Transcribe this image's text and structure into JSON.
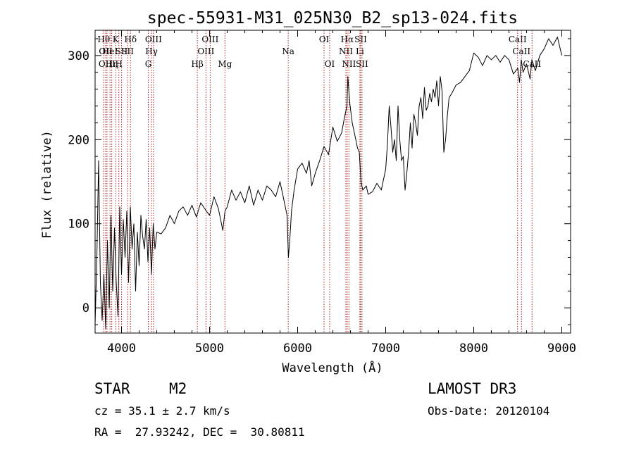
{
  "chart_data": {
    "type": "line",
    "title": "spec-55931-M31_025N30_B2_sp13-024.fits",
    "xlabel": "Wavelength (Å)",
    "ylabel": "Flux (relative)",
    "xlim": [
      3700,
      9100
    ],
    "ylim": [
      -30,
      330
    ],
    "xticks": [
      4000,
      5000,
      6000,
      7000,
      8000,
      9000
    ],
    "yticks": [
      0,
      100,
      200,
      300
    ],
    "grid": false,
    "series": [
      {
        "name": "flux",
        "x": [
          3700,
          3720,
          3740,
          3760,
          3780,
          3800,
          3820,
          3840,
          3860,
          3880,
          3900,
          3920,
          3940,
          3960,
          3980,
          4000,
          4020,
          4040,
          4060,
          4080,
          4100,
          4120,
          4140,
          4160,
          4180,
          4200,
          4220,
          4240,
          4260,
          4280,
          4300,
          4320,
          4340,
          4360,
          4380,
          4400,
          4450,
          4500,
          4550,
          4600,
          4650,
          4700,
          4750,
          4800,
          4850,
          4900,
          4950,
          5000,
          5050,
          5100,
          5150,
          5175,
          5200,
          5250,
          5300,
          5350,
          5400,
          5450,
          5500,
          5550,
          5600,
          5650,
          5700,
          5750,
          5800,
          5850,
          5880,
          5895,
          5910,
          5930,
          5960,
          6000,
          6050,
          6100,
          6130,
          6160,
          6200,
          6250,
          6300,
          6350,
          6400,
          6450,
          6500,
          6530,
          6560,
          6570,
          6590,
          6620,
          6650,
          6680,
          6700,
          6720,
          6740,
          6780,
          6800,
          6850,
          6900,
          6950,
          7000,
          7020,
          7040,
          7060,
          7080,
          7100,
          7120,
          7140,
          7160,
          7180,
          7200,
          7220,
          7240,
          7260,
          7280,
          7300,
          7320,
          7340,
          7360,
          7380,
          7400,
          7420,
          7440,
          7460,
          7480,
          7500,
          7520,
          7540,
          7560,
          7580,
          7600,
          7620,
          7640,
          7660,
          7680,
          7700,
          7720,
          7750,
          7800,
          7850,
          7900,
          7950,
          8000,
          8050,
          8100,
          8150,
          8200,
          8250,
          8300,
          8350,
          8400,
          8450,
          8500,
          8520,
          8540,
          8560,
          8600,
          8640,
          8660,
          8700,
          8750,
          8800,
          8850,
          8900,
          8950,
          9000
        ],
        "values": [
          -20,
          60,
          175,
          30,
          -15,
          40,
          -25,
          80,
          0,
          110,
          20,
          95,
          30,
          -10,
          120,
          40,
          105,
          60,
          115,
          30,
          120,
          70,
          100,
          20,
          90,
          50,
          110,
          85,
          70,
          105,
          55,
          95,
          40,
          100,
          70,
          90,
          88,
          95,
          110,
          100,
          115,
          120,
          110,
          122,
          108,
          125,
          117,
          110,
          132,
          118,
          92,
          115,
          120,
          140,
          128,
          138,
          125,
          145,
          122,
          140,
          128,
          145,
          140,
          132,
          150,
          125,
          110,
          60,
          80,
          115,
          140,
          165,
          172,
          160,
          175,
          145,
          160,
          175,
          192,
          182,
          215,
          198,
          208,
          225,
          240,
          275,
          245,
          220,
          205,
          190,
          185,
          150,
          140,
          145,
          135,
          138,
          148,
          140,
          165,
          195,
          240,
          215,
          185,
          200,
          175,
          240,
          200,
          175,
          180,
          140,
          160,
          185,
          220,
          190,
          230,
          220,
          205,
          240,
          250,
          225,
          262,
          235,
          240,
          255,
          245,
          260,
          250,
          270,
          240,
          275,
          258,
          185,
          200,
          228,
          250,
          255,
          265,
          268,
          275,
          282,
          303,
          298,
          288,
          300,
          295,
          300,
          292,
          300,
          295,
          278,
          285,
          268,
          295,
          280,
          290,
          272,
          295,
          282,
          300,
          308,
          320,
          312,
          322,
          300
        ]
      }
    ],
    "line_markers": [
      {
        "wl": 3798,
        "label": "Hθ",
        "row": 0
      },
      {
        "wl": 3820,
        "label": "OII",
        "row": 1
      },
      {
        "wl": 3835,
        "label": "OIII",
        "row": 2
      },
      {
        "wl": 3869,
        "label": "HeI",
        "row": 1
      },
      {
        "wl": 3889,
        "label": "Hη",
        "row": 2
      },
      {
        "wl": 3934,
        "label": "K",
        "row": 0
      },
      {
        "wl": 3970,
        "label": "H",
        "row": 2
      },
      {
        "wl": 4000,
        "label": "SII",
        "row": 1
      },
      {
        "wl": 4102,
        "label": "Hδ",
        "row": 0
      },
      {
        "wl": 4069,
        "label": "SII",
        "row": 1
      },
      {
        "wl": 4304,
        "label": "G",
        "row": 2
      },
      {
        "wl": 4341,
        "label": "Hγ",
        "row": 1
      },
      {
        "wl": 4363,
        "label": "OIII",
        "row": 0
      },
      {
        "wl": 4861,
        "label": "Hβ",
        "row": 2
      },
      {
        "wl": 4959,
        "label": "OIII",
        "row": 1
      },
      {
        "wl": 5007,
        "label": "OIII",
        "row": 0
      },
      {
        "wl": 5175,
        "label": "Mg",
        "row": 2
      },
      {
        "wl": 5893,
        "label": "Na",
        "row": 1
      },
      {
        "wl": 6300,
        "label": "OI",
        "row": 0
      },
      {
        "wl": 6364,
        "label": "OI",
        "row": 2
      },
      {
        "wl": 6548,
        "label": "NII",
        "row": 1
      },
      {
        "wl": 6563,
        "label": "Hα",
        "row": 0
      },
      {
        "wl": 6583,
        "label": "NII",
        "row": 2
      },
      {
        "wl": 6707,
        "label": "Li",
        "row": 1
      },
      {
        "wl": 6716,
        "label": "SII",
        "row": 0
      },
      {
        "wl": 6731,
        "label": "SII",
        "row": 2
      },
      {
        "wl": 8498,
        "label": "CaII",
        "row": 0
      },
      {
        "wl": 8542,
        "label": "CaII",
        "row": 1
      },
      {
        "wl": 8662,
        "label": "CaII",
        "row": 2
      }
    ]
  },
  "info": {
    "object_class": "STAR",
    "subclass": "M2",
    "survey": "LAMOST DR3",
    "cz": "cz = 35.1 ± 2.7 km/s",
    "obs_date": "Obs-Date: 20120104",
    "coords": "RA =  27.93242, DEC =  30.80811"
  },
  "colors": {
    "spectrum": "#000000",
    "marker": "#b22222",
    "axis": "#000000"
  }
}
